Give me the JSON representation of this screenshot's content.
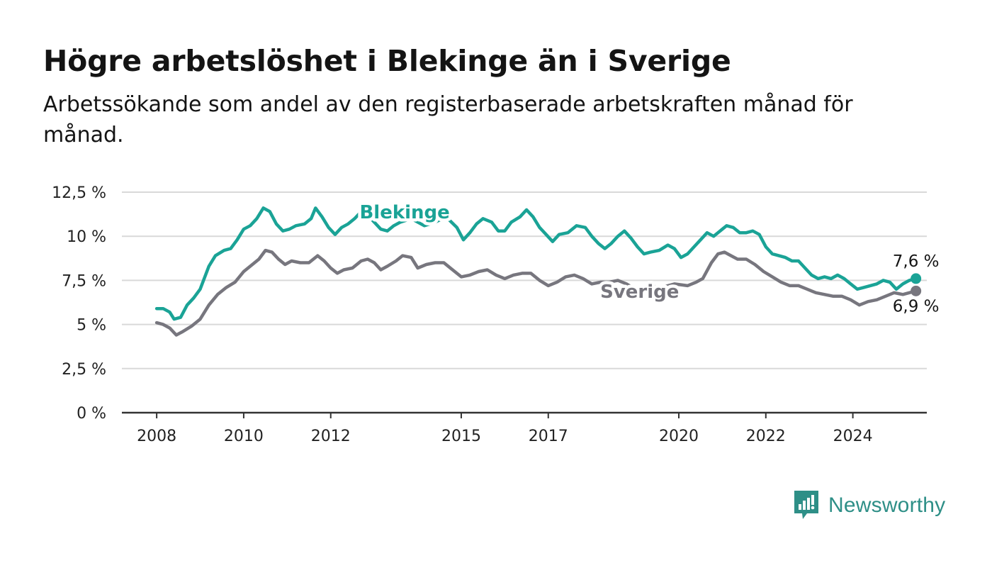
{
  "title": "Högre arbetslöshet i Blekinge än i Sverige",
  "subtitle": "Arbetssökande som andel av den registerbaserade arbetskraften månad för månad.",
  "brand": {
    "name": "Newsworthy",
    "color": "#2e8f87"
  },
  "colors": {
    "blekinge": "#1aa396",
    "sverige": "#77767e",
    "grid": "#d9d9d9",
    "axis": "#333333"
  },
  "chart_data": {
    "type": "line",
    "x_unit": "year",
    "xlim": [
      2007.2,
      2025.7
    ],
    "ylim": [
      0,
      12.5
    ],
    "x_ticks": [
      {
        "value": 2008,
        "label": "2008"
      },
      {
        "value": 2010,
        "label": "2010"
      },
      {
        "value": 2012,
        "label": "2012"
      },
      {
        "value": 2015,
        "label": "2015"
      },
      {
        "value": 2017,
        "label": "2017"
      },
      {
        "value": 2020,
        "label": "2020"
      },
      {
        "value": 2022,
        "label": "2022"
      },
      {
        "value": 2024,
        "label": "2024"
      }
    ],
    "y_ticks": [
      {
        "value": 0,
        "label": "0 %"
      },
      {
        "value": 2.5,
        "label": "2,5 %"
      },
      {
        "value": 5,
        "label": "5 %"
      },
      {
        "value": 7.5,
        "label": "7,5 %"
      },
      {
        "value": 10,
        "label": "10 %"
      },
      {
        "value": 12.5,
        "label": "12,5 %"
      }
    ],
    "grid": true,
    "series": [
      {
        "name": "Blekinge",
        "color": "#1aa396",
        "end_label": "7,6 %",
        "points": [
          [
            2008.0,
            5.9
          ],
          [
            2008.15,
            5.9
          ],
          [
            2008.3,
            5.7
          ],
          [
            2008.4,
            5.3
          ],
          [
            2008.55,
            5.4
          ],
          [
            2008.7,
            6.1
          ],
          [
            2008.85,
            6.5
          ],
          [
            2009.0,
            7.0
          ],
          [
            2009.2,
            8.3
          ],
          [
            2009.35,
            8.9
          ],
          [
            2009.55,
            9.2
          ],
          [
            2009.7,
            9.3
          ],
          [
            2009.85,
            9.8
          ],
          [
            2010.0,
            10.4
          ],
          [
            2010.15,
            10.6
          ],
          [
            2010.3,
            11.0
          ],
          [
            2010.45,
            11.6
          ],
          [
            2010.6,
            11.4
          ],
          [
            2010.75,
            10.7
          ],
          [
            2010.9,
            10.3
          ],
          [
            2011.05,
            10.4
          ],
          [
            2011.2,
            10.6
          ],
          [
            2011.4,
            10.7
          ],
          [
            2011.55,
            11.0
          ],
          [
            2011.65,
            11.6
          ],
          [
            2011.8,
            11.1
          ],
          [
            2011.95,
            10.5
          ],
          [
            2012.1,
            10.1
          ],
          [
            2012.25,
            10.5
          ],
          [
            2012.4,
            10.7
          ],
          [
            2012.55,
            11.0
          ],
          [
            2012.7,
            11.4
          ],
          [
            2012.85,
            11.2
          ],
          [
            2013.0,
            10.8
          ],
          [
            2013.15,
            10.4
          ],
          [
            2013.3,
            10.3
          ],
          [
            2013.45,
            10.6
          ],
          [
            2013.6,
            10.8
          ],
          [
            2013.85,
            11.0
          ],
          [
            2014.15,
            10.6
          ],
          [
            2014.4,
            10.8
          ],
          [
            2014.65,
            11.1
          ],
          [
            2014.9,
            10.5
          ],
          [
            2015.05,
            9.8
          ],
          [
            2015.2,
            10.2
          ],
          [
            2015.35,
            10.7
          ],
          [
            2015.5,
            11.0
          ],
          [
            2015.7,
            10.8
          ],
          [
            2015.85,
            10.3
          ],
          [
            2016.0,
            10.3
          ],
          [
            2016.15,
            10.8
          ],
          [
            2016.35,
            11.1
          ],
          [
            2016.5,
            11.5
          ],
          [
            2016.65,
            11.1
          ],
          [
            2016.8,
            10.5
          ],
          [
            2016.95,
            10.1
          ],
          [
            2017.1,
            9.7
          ],
          [
            2017.25,
            10.1
          ],
          [
            2017.45,
            10.2
          ],
          [
            2017.65,
            10.6
          ],
          [
            2017.85,
            10.5
          ],
          [
            2018.0,
            10.0
          ],
          [
            2018.15,
            9.6
          ],
          [
            2018.3,
            9.3
          ],
          [
            2018.45,
            9.6
          ],
          [
            2018.6,
            10.0
          ],
          [
            2018.75,
            10.3
          ],
          [
            2018.9,
            9.9
          ],
          [
            2019.05,
            9.4
          ],
          [
            2019.2,
            9.0
          ],
          [
            2019.35,
            9.1
          ],
          [
            2019.55,
            9.2
          ],
          [
            2019.75,
            9.5
          ],
          [
            2019.9,
            9.3
          ],
          [
            2020.05,
            8.8
          ],
          [
            2020.2,
            9.0
          ],
          [
            2020.35,
            9.4
          ],
          [
            2020.5,
            9.8
          ],
          [
            2020.65,
            10.2
          ],
          [
            2020.8,
            10.0
          ],
          [
            2020.95,
            10.3
          ],
          [
            2021.1,
            10.6
          ],
          [
            2021.25,
            10.5
          ],
          [
            2021.4,
            10.2
          ],
          [
            2021.55,
            10.2
          ],
          [
            2021.7,
            10.3
          ],
          [
            2021.85,
            10.1
          ],
          [
            2022.0,
            9.4
          ],
          [
            2022.15,
            9.0
          ],
          [
            2022.3,
            8.9
          ],
          [
            2022.45,
            8.8
          ],
          [
            2022.6,
            8.6
          ],
          [
            2022.75,
            8.6
          ],
          [
            2022.9,
            8.2
          ],
          [
            2023.05,
            7.8
          ],
          [
            2023.2,
            7.6
          ],
          [
            2023.35,
            7.7
          ],
          [
            2023.5,
            7.6
          ],
          [
            2023.65,
            7.8
          ],
          [
            2023.8,
            7.6
          ],
          [
            2023.95,
            7.3
          ],
          [
            2024.1,
            7.0
          ],
          [
            2024.25,
            7.1
          ],
          [
            2024.4,
            7.2
          ],
          [
            2024.55,
            7.3
          ],
          [
            2024.7,
            7.5
          ],
          [
            2024.85,
            7.4
          ],
          [
            2025.0,
            7.0
          ],
          [
            2025.15,
            7.3
          ],
          [
            2025.3,
            7.5
          ],
          [
            2025.45,
            7.6
          ]
        ]
      },
      {
        "name": "Sverige",
        "color": "#77767e",
        "end_label": "6,9 %",
        "points": [
          [
            2008.0,
            5.1
          ],
          [
            2008.15,
            5.0
          ],
          [
            2008.3,
            4.8
          ],
          [
            2008.45,
            4.4
          ],
          [
            2008.6,
            4.6
          ],
          [
            2008.8,
            4.9
          ],
          [
            2009.0,
            5.3
          ],
          [
            2009.2,
            6.1
          ],
          [
            2009.4,
            6.7
          ],
          [
            2009.6,
            7.1
          ],
          [
            2009.8,
            7.4
          ],
          [
            2010.0,
            8.0
          ],
          [
            2010.2,
            8.4
          ],
          [
            2010.35,
            8.7
          ],
          [
            2010.5,
            9.2
          ],
          [
            2010.65,
            9.1
          ],
          [
            2010.8,
            8.7
          ],
          [
            2010.95,
            8.4
          ],
          [
            2011.1,
            8.6
          ],
          [
            2011.3,
            8.5
          ],
          [
            2011.5,
            8.5
          ],
          [
            2011.7,
            8.9
          ],
          [
            2011.85,
            8.6
          ],
          [
            2012.0,
            8.2
          ],
          [
            2012.15,
            7.9
          ],
          [
            2012.3,
            8.1
          ],
          [
            2012.5,
            8.2
          ],
          [
            2012.7,
            8.6
          ],
          [
            2012.85,
            8.7
          ],
          [
            2013.0,
            8.5
          ],
          [
            2013.15,
            8.1
          ],
          [
            2013.3,
            8.3
          ],
          [
            2013.5,
            8.6
          ],
          [
            2013.65,
            8.9
          ],
          [
            2013.85,
            8.8
          ],
          [
            2014.0,
            8.2
          ],
          [
            2014.2,
            8.4
          ],
          [
            2014.4,
            8.5
          ],
          [
            2014.6,
            8.5
          ],
          [
            2014.8,
            8.1
          ],
          [
            2015.0,
            7.7
          ],
          [
            2015.2,
            7.8
          ],
          [
            2015.4,
            8.0
          ],
          [
            2015.6,
            8.1
          ],
          [
            2015.8,
            7.8
          ],
          [
            2016.0,
            7.6
          ],
          [
            2016.2,
            7.8
          ],
          [
            2016.4,
            7.9
          ],
          [
            2016.6,
            7.9
          ],
          [
            2016.8,
            7.5
          ],
          [
            2017.0,
            7.2
          ],
          [
            2017.2,
            7.4
          ],
          [
            2017.4,
            7.7
          ],
          [
            2017.6,
            7.8
          ],
          [
            2017.8,
            7.6
          ],
          [
            2018.0,
            7.3
          ],
          [
            2018.2,
            7.4
          ],
          [
            2018.4,
            7.4
          ],
          [
            2018.6,
            7.5
          ],
          [
            2018.8,
            7.3
          ],
          [
            2019.0,
            7.0
          ],
          [
            2019.3,
            7.2
          ],
          [
            2019.6,
            7.1
          ],
          [
            2019.9,
            7.3
          ],
          [
            2020.2,
            7.2
          ],
          [
            2020.4,
            7.4
          ],
          [
            2020.55,
            7.6
          ],
          [
            2020.75,
            8.5
          ],
          [
            2020.9,
            9.0
          ],
          [
            2021.05,
            9.1
          ],
          [
            2021.2,
            8.9
          ],
          [
            2021.35,
            8.7
          ],
          [
            2021.55,
            8.7
          ],
          [
            2021.75,
            8.4
          ],
          [
            2021.95,
            8.0
          ],
          [
            2022.15,
            7.7
          ],
          [
            2022.35,
            7.4
          ],
          [
            2022.55,
            7.2
          ],
          [
            2022.75,
            7.2
          ],
          [
            2022.95,
            7.0
          ],
          [
            2023.15,
            6.8
          ],
          [
            2023.35,
            6.7
          ],
          [
            2023.55,
            6.6
          ],
          [
            2023.75,
            6.6
          ],
          [
            2023.95,
            6.4
          ],
          [
            2024.15,
            6.1
          ],
          [
            2024.35,
            6.3
          ],
          [
            2024.55,
            6.4
          ],
          [
            2024.75,
            6.6
          ],
          [
            2024.95,
            6.8
          ],
          [
            2025.15,
            6.7
          ],
          [
            2025.3,
            6.8
          ],
          [
            2025.45,
            6.9
          ]
        ]
      }
    ]
  }
}
